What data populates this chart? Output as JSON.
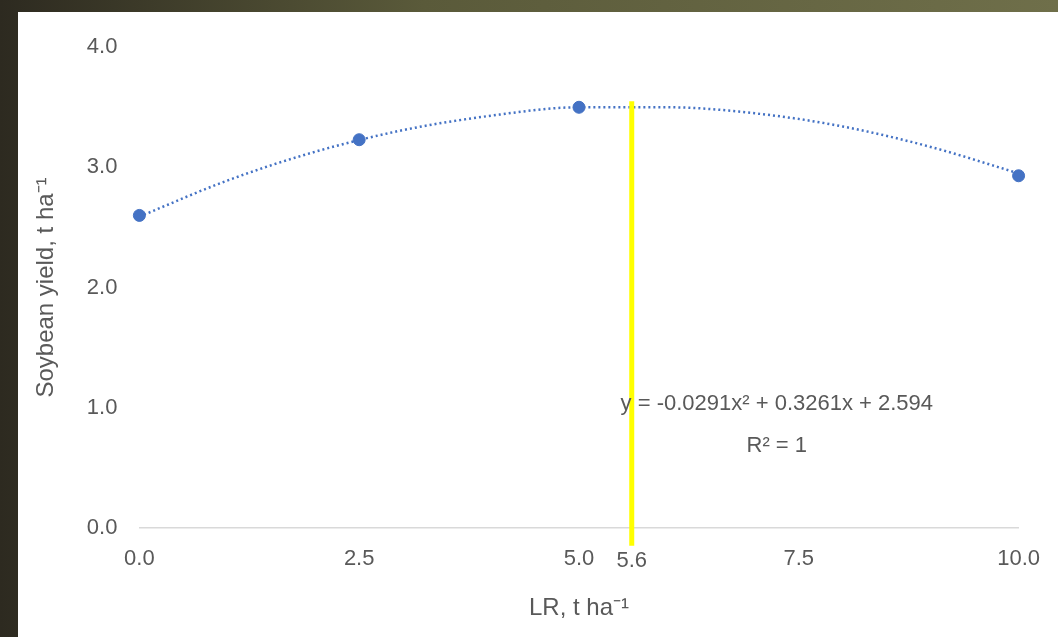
{
  "chart_data": {
    "type": "scatter",
    "xlabel": "LR, t ha⁻¹",
    "ylabel": "Soybean yield, t ha⁻¹",
    "xlim": [
      0,
      10
    ],
    "xticks": [
      {
        "value": 0,
        "label": "0.0"
      },
      {
        "value": 2.5,
        "label": "2.5"
      },
      {
        "value": 5,
        "label": "5.0"
      },
      {
        "value": 7.5,
        "label": "7.5"
      },
      {
        "value": 10,
        "label": "10.0"
      }
    ],
    "ylim": [
      0,
      4
    ],
    "yticks": [
      {
        "value": 0,
        "label": "0.0"
      },
      {
        "value": 1,
        "label": "1.0"
      },
      {
        "value": 2,
        "label": "2.0"
      },
      {
        "value": 3,
        "label": "3.0"
      },
      {
        "value": 4,
        "label": "4.0"
      }
    ],
    "series": [
      {
        "color": "#4472c4",
        "x": [
          0,
          2.5,
          5,
          10
        ],
        "values": [
          2.6,
          3.23,
          3.5,
          2.93
        ],
        "marker": "circle"
      },
      {
        "type": "line",
        "color": "#4472c4",
        "x": [
          0,
          1,
          2,
          3,
          4,
          5,
          6,
          7,
          8,
          9,
          10
        ],
        "values": [
          2.59,
          2.89,
          3.13,
          3.31,
          3.43,
          3.5,
          3.5,
          3.45,
          3.34,
          3.17,
          2.95
        ],
        "line_style": "dotted",
        "marker": "none"
      }
    ],
    "ref_lines": [
      {
        "axis": "x",
        "value": 5.6,
        "label": "5.6",
        "color": "#ffff00"
      }
    ],
    "annotations": [
      "y = -0.0291x² + 0.3261x + 2.594",
      "R² = 1"
    ],
    "grid": false,
    "legend": false
  }
}
